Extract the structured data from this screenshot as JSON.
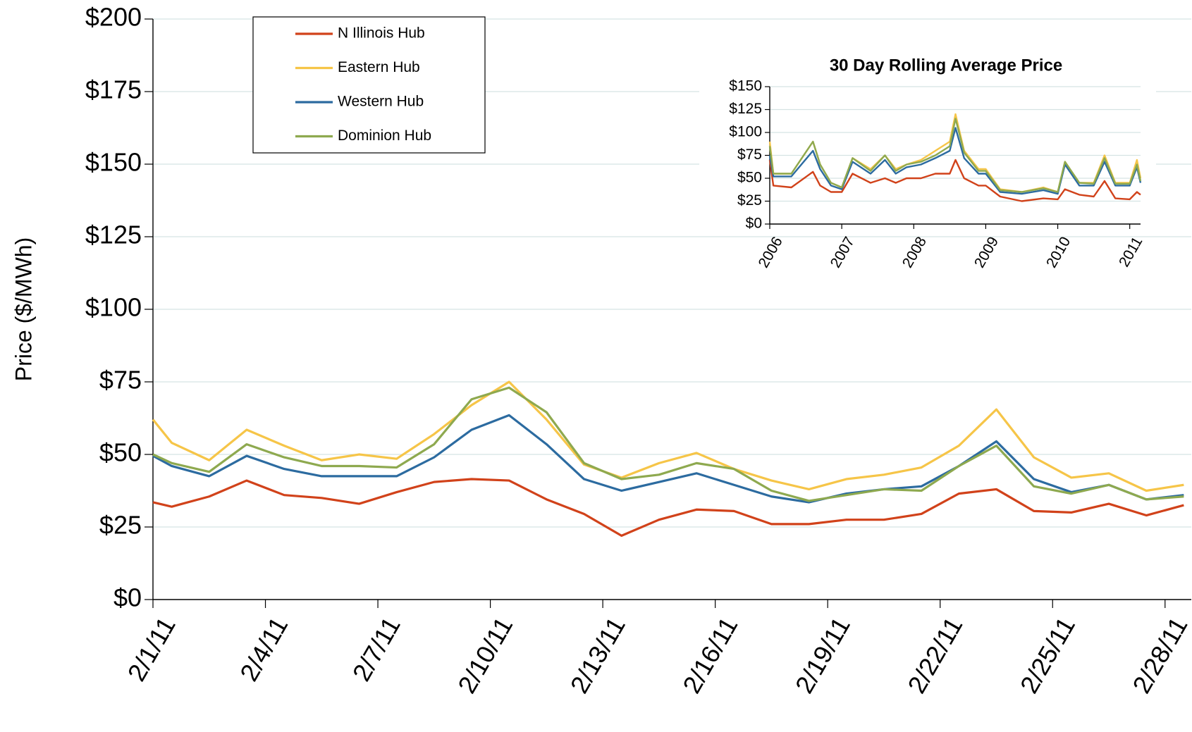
{
  "chart_data": [
    {
      "type": "line",
      "y_label": "Price ($/MWh)",
      "x": [
        0,
        0.5,
        1.5,
        2.5,
        3.5,
        4.5,
        5.5,
        6.5,
        7.5,
        8.5,
        9.5,
        10.5,
        11.5,
        12.5,
        13.5,
        14.5,
        15.5,
        16.5,
        17.5,
        18.5,
        19.5,
        20.5,
        21.5,
        22.5,
        23.5,
        24.5,
        25.5,
        26.5,
        27.5
      ],
      "xlim": [
        0,
        27.7
      ],
      "xticks": [
        {
          "value": 0,
          "label": "2/1/11"
        },
        {
          "value": 3,
          "label": "2/4/11"
        },
        {
          "value": 6,
          "label": "2/7/11"
        },
        {
          "value": 9,
          "label": "2/10/11"
        },
        {
          "value": 12,
          "label": "2/13/11"
        },
        {
          "value": 15,
          "label": "2/16/11"
        },
        {
          "value": 18,
          "label": "2/19/11"
        },
        {
          "value": 21,
          "label": "2/22/11"
        },
        {
          "value": 24,
          "label": "2/25/11"
        },
        {
          "value": 27,
          "label": "2/28/11"
        }
      ],
      "ylim": [
        0,
        200
      ],
      "yticks": [
        {
          "value": 0,
          "label": "$0"
        },
        {
          "value": 25,
          "label": "$25"
        },
        {
          "value": 50,
          "label": "$50"
        },
        {
          "value": 75,
          "label": "$75"
        },
        {
          "value": 100,
          "label": "$100"
        },
        {
          "value": 125,
          "label": "$125"
        },
        {
          "value": 150,
          "label": "$150"
        },
        {
          "value": 175,
          "label": "$175"
        },
        {
          "value": 200,
          "label": "$200"
        }
      ],
      "grid": true,
      "legend": "top-left",
      "series": [
        {
          "name": "N Illinois Hub",
          "color": "#d1421a",
          "values": [
            33.5,
            32,
            35.5,
            41,
            36,
            35,
            33,
            37,
            40.5,
            41.5,
            41,
            34.5,
            29.5,
            22,
            27.5,
            31,
            30.5,
            26,
            26,
            27.5,
            27.5,
            29.5,
            36.5,
            38,
            30.5,
            30,
            33,
            29,
            32.5
          ]
        },
        {
          "name": "Eastern Hub",
          "color": "#f6c548",
          "values": [
            62,
            54,
            48,
            58.5,
            53,
            48,
            50,
            48.5,
            57,
            67,
            75,
            62,
            46.5,
            42,
            47,
            50.5,
            45,
            41,
            38,
            41.5,
            43,
            45.5,
            53,
            65.5,
            49,
            42,
            43.5,
            37.5,
            39.5
          ]
        },
        {
          "name": "Western Hub",
          "color": "#2c6ba0",
          "values": [
            49.5,
            46,
            42.5,
            49.5,
            45,
            42.5,
            42.5,
            42.5,
            49,
            58.5,
            63.5,
            53.5,
            41.5,
            37.5,
            40.5,
            43.5,
            39.5,
            35.5,
            33.5,
            36.5,
            38,
            39,
            46,
            54.5,
            41.5,
            37,
            39.5,
            34.5,
            36
          ]
        },
        {
          "name": "Dominion Hub",
          "color": "#8ea94f",
          "values": [
            50,
            47,
            44,
            53.5,
            49,
            46,
            46,
            45.5,
            53.5,
            69,
            73,
            64.5,
            47,
            41.5,
            43,
            47,
            45,
            37.5,
            34,
            36,
            38,
            37.5,
            46,
            53,
            39,
            36.5,
            39.5,
            34.5,
            35.5
          ]
        }
      ]
    },
    {
      "type": "line",
      "title": "30 Day Rolling Average Price",
      "x": [
        2006.0,
        2006.05,
        2006.3,
        2006.6,
        2006.7,
        2006.85,
        2007.0,
        2007.15,
        2007.4,
        2007.6,
        2007.75,
        2007.9,
        2008.1,
        2008.3,
        2008.5,
        2008.58,
        2008.7,
        2008.9,
        2009.0,
        2009.2,
        2009.5,
        2009.8,
        2010.0,
        2010.1,
        2010.3,
        2010.5,
        2010.65,
        2010.8,
        2011.0,
        2011.1,
        2011.15
      ],
      "xlim": [
        2006,
        2011.15
      ],
      "xticks": [
        2006,
        2007,
        2008,
        2009,
        2010,
        2011
      ],
      "ylim": [
        0,
        150
      ],
      "yticks": [
        {
          "value": 0,
          "label": "$0"
        },
        {
          "value": 25,
          "label": "$25"
        },
        {
          "value": 50,
          "label": "$50"
        },
        {
          "value": 75,
          "label": "$75"
        },
        {
          "value": 100,
          "label": "$100"
        },
        {
          "value": 125,
          "label": "$125"
        },
        {
          "value": 150,
          "label": "$150"
        }
      ],
      "grid": true,
      "series": [
        {
          "color": "#d1421a",
          "values": [
            70,
            42,
            40,
            57,
            42,
            35,
            35,
            55,
            45,
            50,
            45,
            50,
            50,
            55,
            55,
            70,
            50,
            42,
            42,
            30,
            25,
            28,
            27,
            38,
            32,
            30,
            47,
            28,
            27,
            35,
            32
          ]
        },
        {
          "color": "#f6c548",
          "values": [
            90,
            55,
            55,
            90,
            65,
            45,
            40,
            72,
            60,
            75,
            60,
            65,
            70,
            80,
            90,
            120,
            80,
            60,
            60,
            38,
            35,
            40,
            35,
            68,
            45,
            45,
            75,
            45,
            45,
            70,
            50
          ]
        },
        {
          "color": "#2c6ba0",
          "values": [
            75,
            52,
            52,
            80,
            60,
            42,
            38,
            68,
            55,
            70,
            55,
            62,
            65,
            72,
            80,
            105,
            72,
            55,
            55,
            35,
            33,
            37,
            33,
            65,
            42,
            42,
            68,
            42,
            42,
            62,
            45
          ]
        },
        {
          "color": "#8ea94f",
          "values": [
            85,
            55,
            55,
            90,
            65,
            45,
            40,
            72,
            58,
            75,
            58,
            65,
            68,
            75,
            85,
            115,
            78,
            58,
            58,
            37,
            35,
            39,
            35,
            68,
            45,
            44,
            72,
            44,
            44,
            65,
            47
          ]
        }
      ]
    }
  ]
}
